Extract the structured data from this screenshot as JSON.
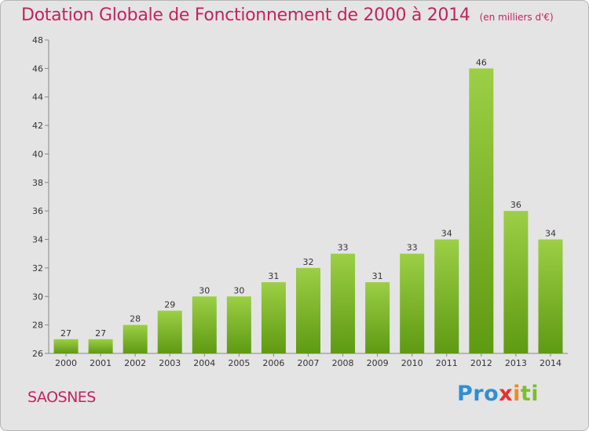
{
  "title": "Dotation Globale de Fonctionnement de 2000 à 2014",
  "unit_note": "(en milliers d'€)",
  "commune": "SAOSNES",
  "logo": {
    "text": "Proxiti",
    "parts": [
      "Pro",
      "x",
      "i",
      "ti"
    ]
  },
  "colors": {
    "title": "#c0255d",
    "bar_top": "#9ccf45",
    "bar_bottom": "#5e9a12",
    "background": "#e4e4e4"
  },
  "chart_data": {
    "type": "bar",
    "title": "Dotation Globale de Fonctionnement de 2000 à 2014",
    "subtitle": "(en milliers d'€)",
    "categories": [
      "2000",
      "2001",
      "2002",
      "2003",
      "2004",
      "2005",
      "2006",
      "2007",
      "2008",
      "2009",
      "2010",
      "2011",
      "2012",
      "2013",
      "2014"
    ],
    "values": [
      27,
      27,
      28,
      29,
      30,
      30,
      31,
      32,
      33,
      31,
      33,
      34,
      46,
      36,
      34
    ],
    "ylim": [
      26,
      48
    ],
    "yticks": [
      26,
      28,
      30,
      32,
      34,
      36,
      38,
      40,
      42,
      44,
      46,
      48
    ],
    "xlabel": "",
    "ylabel": "",
    "grid": false
  }
}
